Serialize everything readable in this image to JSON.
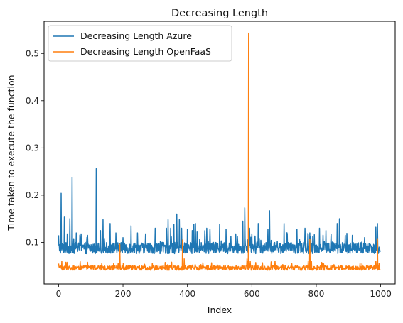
{
  "chart_data": {
    "type": "line",
    "title": "Decreasing Length",
    "xlabel": "Index",
    "ylabel": "Time taken to execute the function",
    "xlim": [
      -45,
      1045
    ],
    "ylim": [
      0.012,
      0.568
    ],
    "xticks": [
      0,
      200,
      400,
      600,
      800,
      1000
    ],
    "yticks": [
      0.1,
      0.2,
      0.3,
      0.4,
      0.5
    ],
    "grid": false,
    "legend_position": "top-left",
    "series": [
      {
        "name": "Decreasing Length Azure",
        "color": "#1f77b4",
        "baseline": 0.088,
        "noise": 0.012,
        "points_count": 1000,
        "spikes": [
          [
            0,
            0.115
          ],
          [
            8,
            0.204
          ],
          [
            18,
            0.155
          ],
          [
            27,
            0.118
          ],
          [
            35,
            0.15
          ],
          [
            42,
            0.238
          ],
          [
            55,
            0.12
          ],
          [
            70,
            0.118
          ],
          [
            90,
            0.115
          ],
          [
            117,
            0.256
          ],
          [
            130,
            0.125
          ],
          [
            138,
            0.148
          ],
          [
            160,
            0.14
          ],
          [
            178,
            0.12
          ],
          [
            200,
            0.11
          ],
          [
            225,
            0.135
          ],
          [
            245,
            0.12
          ],
          [
            270,
            0.118
          ],
          [
            300,
            0.13
          ],
          [
            335,
            0.13
          ],
          [
            340,
            0.148
          ],
          [
            348,
            0.13
          ],
          [
            358,
            0.138
          ],
          [
            367,
            0.16
          ],
          [
            375,
            0.148
          ],
          [
            382,
            0.13
          ],
          [
            400,
            0.128
          ],
          [
            415,
            0.125
          ],
          [
            420,
            0.138
          ],
          [
            425,
            0.14
          ],
          [
            430,
            0.122
          ],
          [
            460,
            0.13
          ],
          [
            470,
            0.128
          ],
          [
            500,
            0.138
          ],
          [
            520,
            0.128
          ],
          [
            550,
            0.118
          ],
          [
            572,
            0.145
          ],
          [
            578,
            0.173
          ],
          [
            593,
            0.13
          ],
          [
            600,
            0.118
          ],
          [
            620,
            0.14
          ],
          [
            650,
            0.128
          ],
          [
            655,
            0.167
          ],
          [
            700,
            0.14
          ],
          [
            710,
            0.118
          ],
          [
            740,
            0.128
          ],
          [
            765,
            0.13
          ],
          [
            780,
            0.12
          ],
          [
            810,
            0.13
          ],
          [
            830,
            0.125
          ],
          [
            865,
            0.14
          ],
          [
            872,
            0.15
          ],
          [
            890,
            0.115
          ],
          [
            912,
            0.115
          ],
          [
            950,
            0.11
          ],
          [
            985,
            0.132
          ],
          [
            990,
            0.14
          ],
          [
            995,
            0.09
          ],
          [
            999,
            0.082
          ]
        ]
      },
      {
        "name": "Decreasing Length OpenFaaS",
        "color": "#ff7f0e",
        "baseline": 0.046,
        "noise": 0.005,
        "points_count": 1000,
        "spikes": [
          [
            0,
            0.055
          ],
          [
            10,
            0.06
          ],
          [
            185,
            0.055
          ],
          [
            190,
            0.096
          ],
          [
            385,
            0.105
          ],
          [
            390,
            0.065
          ],
          [
            585,
            0.065
          ],
          [
            590,
            0.543
          ],
          [
            595,
            0.06
          ],
          [
            775,
            0.06
          ],
          [
            780,
            0.107
          ],
          [
            785,
            0.06
          ],
          [
            820,
            0.055
          ],
          [
            985,
            0.06
          ],
          [
            990,
            0.108
          ],
          [
            995,
            0.055
          ]
        ]
      }
    ]
  }
}
